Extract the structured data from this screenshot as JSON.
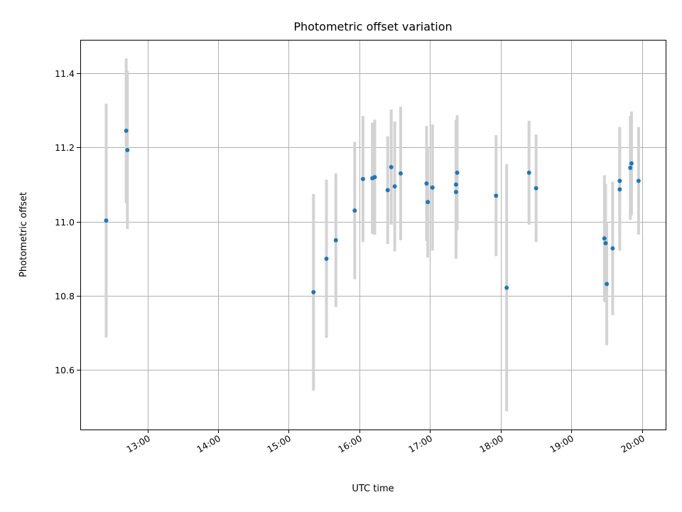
{
  "chart_data": {
    "type": "scatter",
    "title": "Photometric offset variation",
    "xlabel": "UTC time",
    "ylabel": "Photometric offset",
    "x_ticks": [
      "13:00",
      "14:00",
      "15:00",
      "16:00",
      "17:00",
      "18:00",
      "19:00",
      "20:00"
    ],
    "y_ticks": [
      10.6,
      10.8,
      11.0,
      11.2,
      11.4
    ],
    "xlim": [
      "12:03",
      "20:20"
    ],
    "ylim": [
      10.44,
      11.49
    ],
    "grid": true,
    "marker_color": "#1f77b4",
    "errorbar_color": "#d3d3d3",
    "points": [
      {
        "x": "12:25",
        "y": 11.003,
        "yerr": 0.315
      },
      {
        "x": "12:42",
        "y": 11.245,
        "yerr": 0.195
      },
      {
        "x": "12:43",
        "y": 11.193,
        "yerr": 0.213
      },
      {
        "x": "15:21",
        "y": 10.81,
        "yerr": 0.265
      },
      {
        "x": "15:32",
        "y": 10.9,
        "yerr": 0.213
      },
      {
        "x": "15:40",
        "y": 10.95,
        "yerr": 0.18
      },
      {
        "x": "15:56",
        "y": 11.03,
        "yerr": 0.185
      },
      {
        "x": "16:03",
        "y": 11.115,
        "yerr": 0.17
      },
      {
        "x": "16:11",
        "y": 11.117,
        "yerr": 0.15
      },
      {
        "x": "16:13",
        "y": 11.12,
        "yerr": 0.155
      },
      {
        "x": "16:24",
        "y": 11.085,
        "yerr": 0.145
      },
      {
        "x": "16:27",
        "y": 11.147,
        "yerr": 0.155
      },
      {
        "x": "16:30",
        "y": 11.095,
        "yerr": 0.175
      },
      {
        "x": "16:35",
        "y": 11.13,
        "yerr": 0.18
      },
      {
        "x": "16:57",
        "y": 11.103,
        "yerr": 0.155
      },
      {
        "x": "16:58",
        "y": 11.053,
        "yerr": 0.15
      },
      {
        "x": "17:02",
        "y": 11.092,
        "yerr": 0.17
      },
      {
        "x": "17:22",
        "y": 11.08,
        "yerr": 0.18
      },
      {
        "x": "17:22",
        "y": 11.1,
        "yerr": 0.175
      },
      {
        "x": "17:23",
        "y": 11.132,
        "yerr": 0.155
      },
      {
        "x": "17:56",
        "y": 11.07,
        "yerr": 0.163
      },
      {
        "x": "18:05",
        "y": 10.822,
        "yerr": 0.333
      },
      {
        "x": "18:24",
        "y": 11.132,
        "yerr": 0.14
      },
      {
        "x": "18:30",
        "y": 11.09,
        "yerr": 0.145
      },
      {
        "x": "19:28",
        "y": 10.955,
        "yerr": 0.17
      },
      {
        "x": "19:29",
        "y": 10.942,
        "yerr": 0.16
      },
      {
        "x": "19:30",
        "y": 10.832,
        "yerr": 0.165
      },
      {
        "x": "19:35",
        "y": 10.928,
        "yerr": 0.18
      },
      {
        "x": "19:41",
        "y": 11.087,
        "yerr": 0.165
      },
      {
        "x": "19:41",
        "y": 11.11,
        "yerr": 0.145
      },
      {
        "x": "19:50",
        "y": 11.145,
        "yerr": 0.14
      },
      {
        "x": "19:51",
        "y": 11.157,
        "yerr": 0.14
      },
      {
        "x": "19:57",
        "y": 11.11,
        "yerr": 0.145
      }
    ]
  }
}
